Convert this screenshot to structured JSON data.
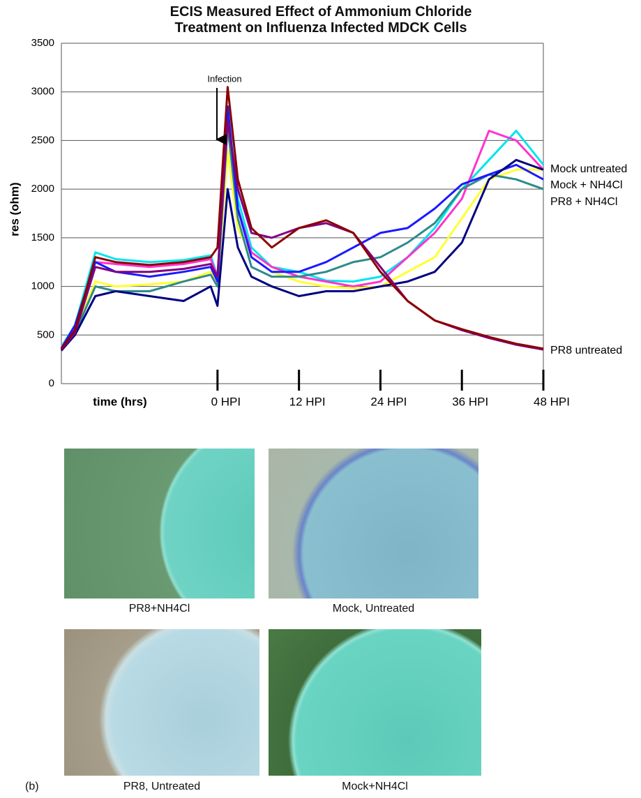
{
  "chart_data": {
    "type": "line",
    "title": "ECIS Measured Effect of Ammonium Chloride Treatment on Influenza Infected MDCK Cells",
    "ylabel": "res (ohm)",
    "xlabel": "time (hrs)",
    "xlim": [
      -23,
      48
    ],
    "ylim": [
      0,
      3500
    ],
    "yticks": [
      0,
      500,
      1000,
      1500,
      2000,
      2500,
      3000,
      3500
    ],
    "xticks": [
      {
        "value": 0,
        "label": "0 HPI"
      },
      {
        "value": 12,
        "label": "12 HPI"
      },
      {
        "value": 24,
        "label": "24 HPI"
      },
      {
        "value": 36,
        "label": "36 HPI"
      },
      {
        "value": 48,
        "label": "48 HPI"
      }
    ],
    "grid": true,
    "x": [
      -23,
      -21,
      -18,
      -15,
      -10,
      -5,
      -1,
      0,
      1.5,
      3,
      5,
      8,
      12,
      16,
      20,
      24,
      28,
      32,
      36,
      40,
      44,
      48
    ],
    "series": [
      {
        "color": "#00e5ee",
        "values": [
          380,
          600,
          1350,
          1280,
          1250,
          1270,
          1320,
          1100,
          2850,
          1900,
          1400,
          1200,
          1150,
          1060,
          1050,
          1100,
          1300,
          1600,
          2000,
          2300,
          2600,
          2250
        ]
      },
      {
        "color": "#ff33cc",
        "values": [
          370,
          580,
          1250,
          1230,
          1200,
          1230,
          1280,
          1100,
          2700,
          1800,
          1350,
          1200,
          1100,
          1050,
          1000,
          1050,
          1300,
          1550,
          1900,
          2600,
          2500,
          2200
        ]
      },
      {
        "color": "#ffff33",
        "values": [
          360,
          540,
          1050,
          1000,
          1020,
          1050,
          1150,
          1000,
          2400,
          1600,
          1300,
          1150,
          1050,
          1000,
          980,
          1000,
          1150,
          1300,
          1700,
          2100,
          2200,
          2200
        ]
      },
      {
        "color": "#2e8b8b",
        "values": [
          350,
          520,
          1000,
          950,
          950,
          1050,
          1120,
          1000,
          2650,
          1700,
          1200,
          1100,
          1100,
          1150,
          1250,
          1300,
          1450,
          1650,
          2000,
          2150,
          2100,
          2000
        ]
      },
      {
        "color": "#1a1aff",
        "values": [
          360,
          600,
          1250,
          1150,
          1100,
          1150,
          1200,
          1050,
          2850,
          1800,
          1300,
          1150,
          1150,
          1250,
          1400,
          1550,
          1600,
          1800,
          2050,
          2150,
          2250,
          2100
        ]
      },
      {
        "color": "#000080",
        "values": [
          340,
          500,
          900,
          950,
          900,
          850,
          1000,
          800,
          2000,
          1400,
          1100,
          1000,
          900,
          950,
          950,
          1000,
          1050,
          1150,
          1450,
          2100,
          2300,
          2200
        ]
      },
      {
        "color": "#800080",
        "values": [
          350,
          520,
          1200,
          1150,
          1150,
          1180,
          1230,
          1100,
          2700,
          2000,
          1550,
          1500,
          1600,
          1650,
          1550,
          1200,
          850,
          650,
          550,
          470,
          400,
          350
        ]
      },
      {
        "color": "#8b0000",
        "values": [
          360,
          550,
          1300,
          1250,
          1220,
          1250,
          1300,
          1400,
          3050,
          2100,
          1600,
          1400,
          1600,
          1680,
          1550,
          1150,
          850,
          650,
          560,
          480,
          410,
          360
        ]
      }
    ],
    "annotations": [
      {
        "text": "Infection"
      },
      {
        "text": "Mock untreated"
      },
      {
        "text": "Mock + NH4Cl"
      },
      {
        "text": "PR8 + NH4Cl"
      },
      {
        "text": "PR8 untreated"
      }
    ]
  },
  "panels": {
    "label": "(b)",
    "images": [
      {
        "caption": "PR8+NH4Cl"
      },
      {
        "caption": "Mock, Untreated"
      },
      {
        "caption": "PR8, Untreated"
      },
      {
        "caption": "Mock+NH4Cl"
      }
    ]
  }
}
